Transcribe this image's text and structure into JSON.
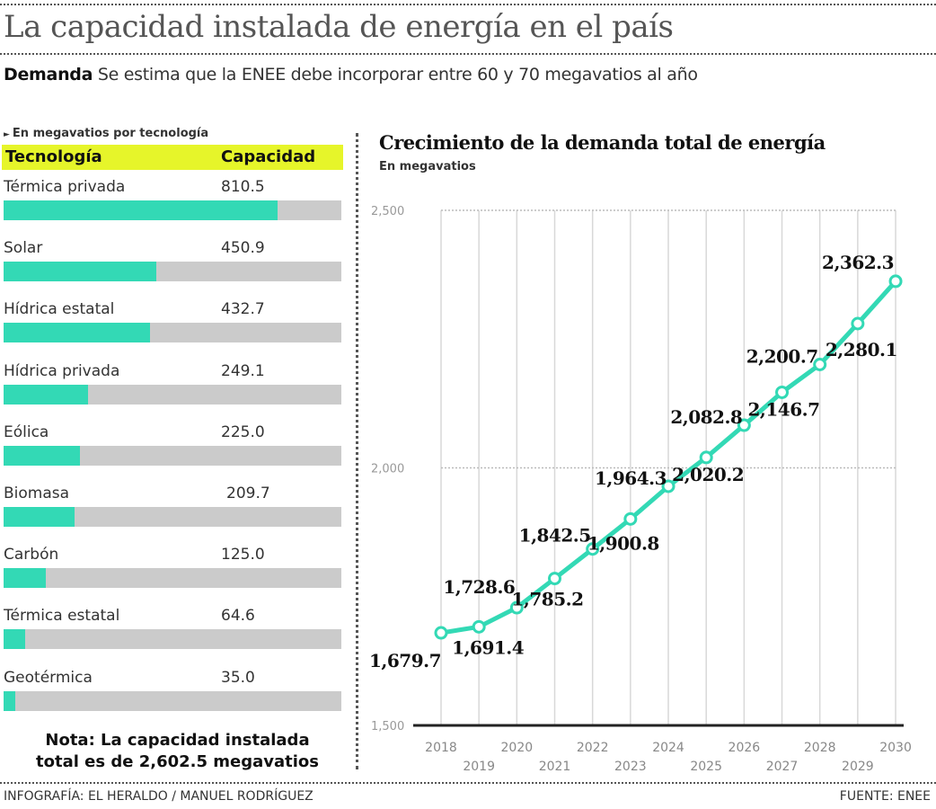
{
  "header": {
    "title": "La capacidad instalada de energía en el país",
    "subtitle_lead": "Demanda",
    "subtitle_text": " Se estima que la ENEE debe incorporar entre 60 y 70 megavatios al año"
  },
  "table": {
    "note": "En megavatios por tecnología",
    "col_tech": "Tecnología",
    "col_capacity": "Capacidad",
    "scale_max": 1000,
    "rows": [
      {
        "name": "Térmica privada",
        "value": "810.5",
        "num": 810.5
      },
      {
        "name": "Solar",
        "value": "450.9",
        "num": 450.9
      },
      {
        "name": "Hídrica estatal",
        "value": "432.7",
        "num": 432.7
      },
      {
        "name": "Hídrica privada",
        "value": "249.1",
        "num": 249.1
      },
      {
        "name": "Eólica",
        "value": "225.0",
        "num": 225.0
      },
      {
        "name": "Biomasa",
        "value": "209.7",
        "num": 209.7
      },
      {
        "name": "Carbón",
        "value": "125.0",
        "num": 125.0
      },
      {
        "name": "Térmica estatal",
        "value": "64.6",
        "num": 64.6
      },
      {
        "name": "Geotérmica",
        "value": "35.0",
        "num": 35.0
      }
    ],
    "total_note_line1": "Nota: La capacidad instalada",
    "total_note_line2": "total es de 2,602.5 megavatios"
  },
  "colors": {
    "accent": "#33d9b5",
    "track": "#cbcbcb",
    "highlight": "#e6f52a",
    "grid": "#d8d8d8"
  },
  "chart_data": [
    {
      "type": "bar",
      "orientation": "horizontal",
      "title": "En megavatios por tecnología",
      "categories": [
        "Térmica privada",
        "Solar",
        "Hídrica estatal",
        "Hídrica privada",
        "Eólica",
        "Biomasa",
        "Carbón",
        "Térmica estatal",
        "Geotérmica"
      ],
      "values": [
        810.5,
        450.9,
        432.7,
        249.1,
        225.0,
        209.7,
        125.0,
        64.6,
        35.0
      ],
      "xlabel": "Capacidad",
      "ylabel": "Tecnología"
    },
    {
      "type": "line",
      "title": "Crecimiento de la demanda total de energía",
      "subtitle": "En megavatios",
      "x": [
        2018,
        2019,
        2020,
        2021,
        2022,
        2023,
        2024,
        2025,
        2026,
        2027,
        2028,
        2029,
        2030
      ],
      "series": [
        {
          "name": "Demanda total",
          "values": [
            1679.7,
            1691.4,
            1728.6,
            1785.2,
            1842.5,
            1900.8,
            1964.3,
            2020.2,
            2082.8,
            2146.7,
            2200.7,
            2280.1,
            2362.3
          ]
        }
      ],
      "labels": [
        "1,679.7",
        "1,691.4",
        "1,728.6",
        "1,785.2",
        "1,842.5",
        "1,900.8",
        "1,964.3",
        "2,020.2",
        "2,082.8",
        "2,146.7",
        "2,200.7",
        "2,280.1",
        "2,362.3"
      ],
      "label_side": [
        "below",
        "below",
        "above",
        "below",
        "above",
        "below",
        "above",
        "below",
        "above",
        "below",
        "above",
        "below",
        "above"
      ],
      "yticks": [
        1500,
        2000,
        2500
      ],
      "ytick_labels": [
        "1,500",
        "2,000",
        "2,500"
      ],
      "xtick_labels": [
        "2018",
        "2019",
        "2020",
        "2021",
        "2022",
        "2023",
        "2024",
        "2025",
        "2026",
        "2027",
        "2028",
        "2029",
        "2030"
      ],
      "ylim": [
        1500,
        2500
      ],
      "xlabel": "",
      "ylabel": "",
      "grid": true,
      "legend": "none"
    }
  ],
  "footer": {
    "credit": "INFOGRAFÍA: EL HERALDO / MANUEL RODRÍGUEZ",
    "source": "FUENTE: ENEE"
  }
}
